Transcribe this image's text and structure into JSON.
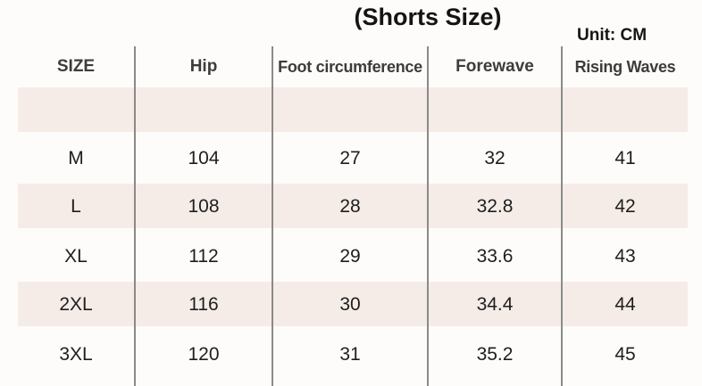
{
  "title": "(Shorts Size)",
  "unit": "Unit: CM",
  "columns": [
    "SIZE",
    "Hip",
    "Foot circumference",
    "Forewave",
    "Rising Waves"
  ],
  "rows": [
    [
      "M",
      "104",
      "27",
      "32",
      "41"
    ],
    [
      "L",
      "108",
      "28",
      "32.8",
      "42"
    ],
    [
      "XL",
      "112",
      "29",
      "33.6",
      "43"
    ],
    [
      "2XL",
      "116",
      "30",
      "34.4",
      "44"
    ],
    [
      "3XL",
      "120",
      "31",
      "35.2",
      "45"
    ]
  ],
  "colors": {
    "band": "#f5ece8",
    "divider": "#8a8a8a",
    "background": "#fefcfa"
  }
}
